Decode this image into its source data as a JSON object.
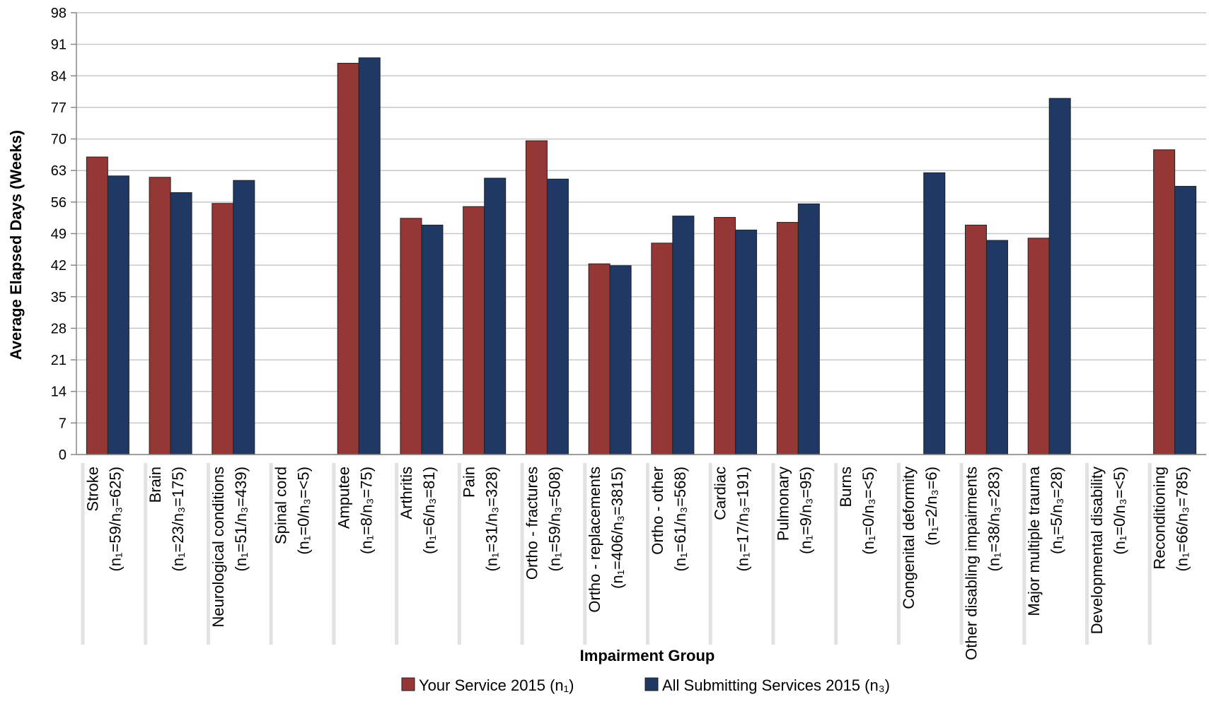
{
  "chart_data": {
    "type": "bar",
    "xlabel": "Impairment Group",
    "ylabel": "Average Elapsed Days (Weeks)",
    "ylim": [
      0,
      98
    ],
    "yticks": [
      0,
      7,
      14,
      21,
      28,
      35,
      42,
      49,
      56,
      63,
      70,
      77,
      84,
      91,
      98
    ],
    "grid": true,
    "legend_position": "bottom",
    "categories": [
      [
        "Stroke",
        "(n₁=59/n₃=625)"
      ],
      [
        "Brain",
        "(n₁=23/n₃=175)"
      ],
      [
        "Neurological conditions",
        "(n₁=51/n₃=439)"
      ],
      [
        "Spinal cord",
        "(n₁=0/n₃=<5)"
      ],
      [
        "Amputee",
        "(n₁=8/n₃=75)"
      ],
      [
        "Arthritis",
        "(n₁=6/n₃=81)"
      ],
      [
        "Pain",
        "(n₁=31/n₃=328)"
      ],
      [
        "Ortho - fractures",
        "(n₁=59/n₃=508)"
      ],
      [
        "Ortho - replacements",
        "(n₁=406/n₃=3815)"
      ],
      [
        "Ortho - other",
        "(n₁=61/n₃=568)"
      ],
      [
        "Cardiac",
        "(n₁=17/n₃=191)"
      ],
      [
        "Pulmonary",
        "(n₁=9/n₃=95)"
      ],
      [
        "Burns",
        "(n₁=0/n₃=<5)"
      ],
      [
        "Congenital deformity",
        "(n₁=2/n₃=6)"
      ],
      [
        "Other disabling impairments",
        "(n₁=38/n₃=283)"
      ],
      [
        "Major multiple trauma",
        "(n₁=5/n₃=28)"
      ],
      [
        "Developmental disability",
        "(n₁=0/n₃=<5)"
      ],
      [
        "Reconditioning",
        "(n₁=66/n₃=785)"
      ]
    ],
    "series": [
      {
        "name": "Your Service 2015 (n₁)",
        "color": "#953735",
        "values": [
          66,
          61.5,
          55.7,
          null,
          86.8,
          52.4,
          55,
          69.6,
          42.3,
          46.9,
          52.6,
          51.5,
          null,
          null,
          50.9,
          48,
          null,
          67.6
        ]
      },
      {
        "name": "All Submitting Services 2015 (n₃)",
        "color": "#1F3864",
        "values": [
          61.8,
          58.1,
          60.8,
          null,
          88,
          50.9,
          61.3,
          61.1,
          41.9,
          52.9,
          49.8,
          55.6,
          null,
          62.5,
          47.5,
          79,
          null,
          59.5
        ]
      }
    ]
  }
}
